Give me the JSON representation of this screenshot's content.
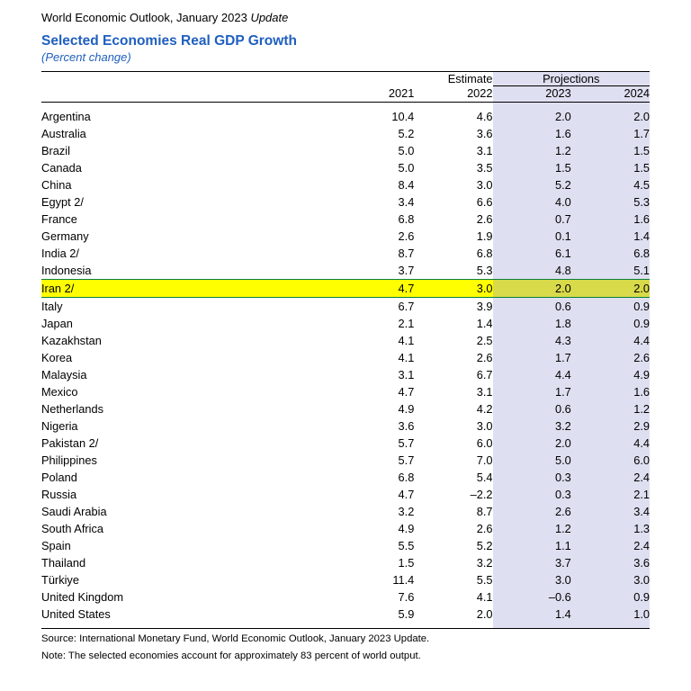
{
  "header": {
    "source_line_prefix": "World Economic Outlook, January 2023 ",
    "source_line_update": "Update",
    "title": "Selected Economies Real GDP Growth",
    "subtitle": "(Percent change)"
  },
  "table": {
    "col_est_label": "Estimate",
    "col_proj_label": "Projections",
    "years": [
      "2021",
      "2022",
      "2023",
      "2024"
    ],
    "highlight_index": 10,
    "rows": [
      {
        "name": "Argentina",
        "v": [
          "10.4",
          "4.6",
          "2.0",
          "2.0"
        ]
      },
      {
        "name": "Australia",
        "v": [
          "5.2",
          "3.6",
          "1.6",
          "1.7"
        ]
      },
      {
        "name": "Brazil",
        "v": [
          "5.0",
          "3.1",
          "1.2",
          "1.5"
        ]
      },
      {
        "name": "Canada",
        "v": [
          "5.0",
          "3.5",
          "1.5",
          "1.5"
        ]
      },
      {
        "name": "China",
        "v": [
          "8.4",
          "3.0",
          "5.2",
          "4.5"
        ]
      },
      {
        "name": "Egypt 2/",
        "v": [
          "3.4",
          "6.6",
          "4.0",
          "5.3"
        ]
      },
      {
        "name": "France",
        "v": [
          "6.8",
          "2.6",
          "0.7",
          "1.6"
        ]
      },
      {
        "name": "Germany",
        "v": [
          "2.6",
          "1.9",
          "0.1",
          "1.4"
        ]
      },
      {
        "name": "India 2/",
        "v": [
          "8.7",
          "6.8",
          "6.1",
          "6.8"
        ]
      },
      {
        "name": "Indonesia",
        "v": [
          "3.7",
          "5.3",
          "4.8",
          "5.1"
        ]
      },
      {
        "name": "Iran 2/",
        "v": [
          "4.7",
          "3.0",
          "2.0",
          "2.0"
        ]
      },
      {
        "name": "Italy",
        "v": [
          "6.7",
          "3.9",
          "0.6",
          "0.9"
        ]
      },
      {
        "name": "Japan",
        "v": [
          "2.1",
          "1.4",
          "1.8",
          "0.9"
        ]
      },
      {
        "name": "Kazakhstan",
        "v": [
          "4.1",
          "2.5",
          "4.3",
          "4.4"
        ]
      },
      {
        "name": "Korea",
        "v": [
          "4.1",
          "2.6",
          "1.7",
          "2.6"
        ]
      },
      {
        "name": "Malaysia",
        "v": [
          "3.1",
          "6.7",
          "4.4",
          "4.9"
        ]
      },
      {
        "name": "Mexico",
        "v": [
          "4.7",
          "3.1",
          "1.7",
          "1.6"
        ]
      },
      {
        "name": "Netherlands",
        "v": [
          "4.9",
          "4.2",
          "0.6",
          "1.2"
        ]
      },
      {
        "name": "Nigeria",
        "v": [
          "3.6",
          "3.0",
          "3.2",
          "2.9"
        ]
      },
      {
        "name": "Pakistan 2/",
        "v": [
          "5.7",
          "6.0",
          "2.0",
          "4.4"
        ]
      },
      {
        "name": "Philippines",
        "v": [
          "5.7",
          "7.0",
          "5.0",
          "6.0"
        ]
      },
      {
        "name": "Poland",
        "v": [
          "6.8",
          "5.4",
          "0.3",
          "2.4"
        ]
      },
      {
        "name": "Russia",
        "v": [
          "4.7",
          "–2.2",
          "0.3",
          "2.1"
        ]
      },
      {
        "name": "Saudi Arabia",
        "v": [
          "3.2",
          "8.7",
          "2.6",
          "3.4"
        ]
      },
      {
        "name": "South Africa",
        "v": [
          "4.9",
          "2.6",
          "1.2",
          "1.3"
        ]
      },
      {
        "name": "Spain",
        "v": [
          "5.5",
          "5.2",
          "1.1",
          "2.4"
        ]
      },
      {
        "name": "Thailand",
        "v": [
          "1.5",
          "3.2",
          "3.7",
          "3.6"
        ]
      },
      {
        "name": "Türkiye",
        "v": [
          "11.4",
          "5.5",
          "3.0",
          "3.0"
        ]
      },
      {
        "name": "United Kingdom",
        "v": [
          "7.6",
          "4.1",
          "–0.6",
          "0.9"
        ]
      },
      {
        "name": "United States",
        "v": [
          "5.9",
          "2.0",
          "1.4",
          "1.0"
        ]
      }
    ]
  },
  "footer": {
    "source": "Source: International Monetary Fund, World Economic Outlook, January 2023 Update.",
    "note": "Note: The selected economies account for approximately 83 percent of world output."
  }
}
